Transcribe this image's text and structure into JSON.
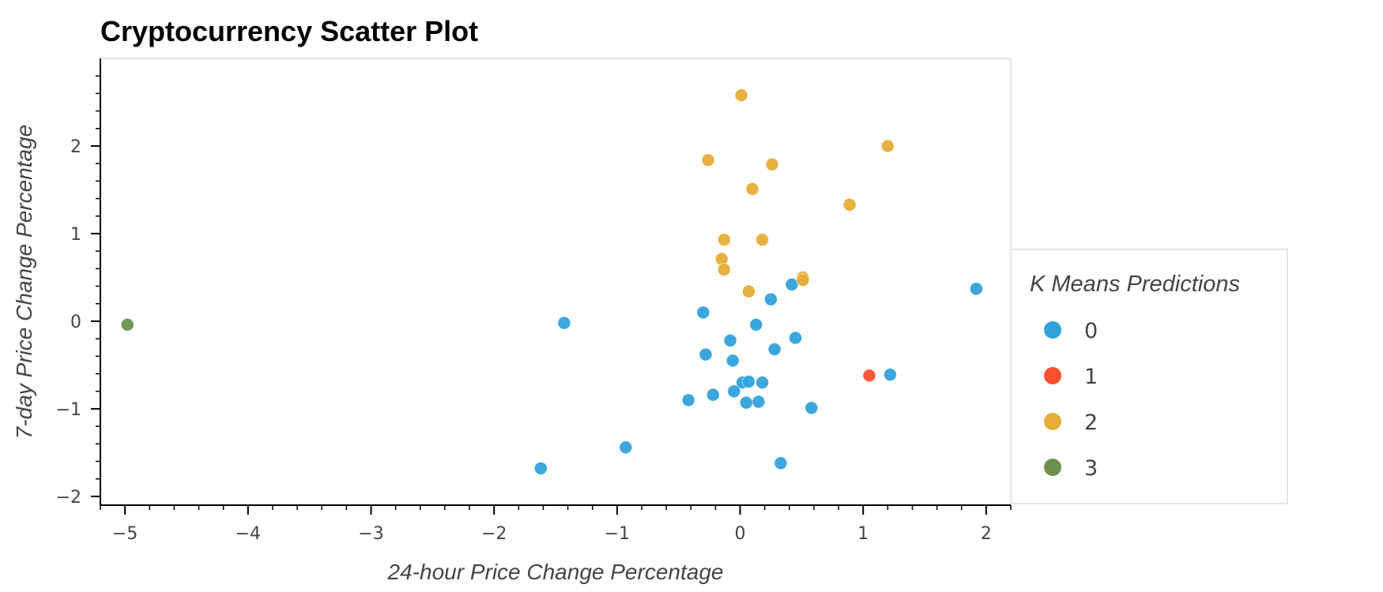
{
  "chart_data": {
    "type": "scatter",
    "title": "Cryptocurrency Scatter Plot",
    "xlabel": "24-hour Price Change Percentage",
    "ylabel": "7-day Price Change Percentage",
    "xlim": [
      -5.2,
      2.2
    ],
    "ylim": [
      -2.1,
      3.0
    ],
    "x_ticks": [
      -5,
      -4,
      -3,
      -2,
      -1,
      0,
      1,
      2
    ],
    "x_tick_labels": [
      "−5",
      "−4",
      "−3",
      "−2",
      "−1",
      "0",
      "1",
      "2"
    ],
    "y_ticks": [
      -2,
      -1,
      0,
      1,
      2
    ],
    "y_tick_labels": [
      "−2",
      "−1",
      "0",
      "1",
      "2"
    ],
    "grid": false,
    "legend_title": "K Means Predictions",
    "legend_position": "right",
    "series": [
      {
        "name": "0",
        "color": "#30a2da",
        "points": [
          [
            -1.43,
            -0.02
          ],
          [
            -1.62,
            -1.68
          ],
          [
            -0.93,
            -1.44
          ],
          [
            -0.42,
            -0.9
          ],
          [
            -0.3,
            0.1
          ],
          [
            -0.28,
            -0.38
          ],
          [
            -0.22,
            -0.84
          ],
          [
            -0.08,
            -0.22
          ],
          [
            -0.06,
            -0.45
          ],
          [
            -0.05,
            -0.8
          ],
          [
            0.02,
            -0.7
          ],
          [
            0.05,
            -0.93
          ],
          [
            0.07,
            -0.69
          ],
          [
            0.13,
            -0.04
          ],
          [
            0.15,
            -0.92
          ],
          [
            0.18,
            -0.7
          ],
          [
            0.25,
            0.25
          ],
          [
            0.28,
            -0.32
          ],
          [
            0.33,
            -1.62
          ],
          [
            0.42,
            0.42
          ],
          [
            0.45,
            -0.19
          ],
          [
            0.58,
            -0.99
          ],
          [
            1.22,
            -0.61
          ],
          [
            1.92,
            0.37
          ]
        ]
      },
      {
        "name": "1",
        "color": "#fc4f30",
        "points": [
          [
            1.05,
            -0.62
          ]
        ]
      },
      {
        "name": "2",
        "color": "#e5ae38",
        "points": [
          [
            0.01,
            2.58
          ],
          [
            1.2,
            2.0
          ],
          [
            -0.26,
            1.84
          ],
          [
            0.26,
            1.79
          ],
          [
            0.1,
            1.51
          ],
          [
            0.89,
            1.33
          ],
          [
            -0.13,
            0.93
          ],
          [
            0.18,
            0.93
          ],
          [
            -0.15,
            0.71
          ],
          [
            -0.13,
            0.59
          ],
          [
            0.51,
            0.5
          ],
          [
            0.51,
            0.47
          ],
          [
            0.07,
            0.34
          ]
        ]
      },
      {
        "name": "3",
        "color": "#6d904f",
        "points": [
          [
            -4.98,
            -0.04
          ]
        ]
      }
    ]
  }
}
